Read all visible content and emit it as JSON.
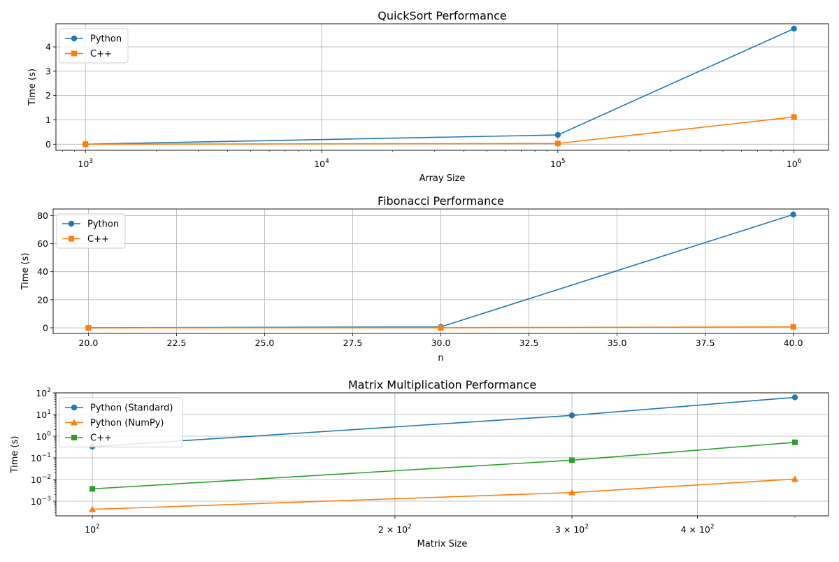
{
  "chart_data": [
    {
      "type": "line",
      "title": "QuickSort Performance",
      "xlabel": "Array Size",
      "ylabel": "Time (s)",
      "xscale": "log",
      "yscale": "linear",
      "xlim": [
        750,
        1400000
      ],
      "ylim": [
        -0.25,
        4.95
      ],
      "grid": true,
      "legend_position": "top-left",
      "x_ticks": [
        {
          "value": 1000,
          "base": "10",
          "exp": "3"
        },
        {
          "value": 10000,
          "base": "10",
          "exp": "4"
        },
        {
          "value": 100000,
          "base": "10",
          "exp": "5"
        },
        {
          "value": 1000000,
          "base": "10",
          "exp": "6"
        }
      ],
      "y_ticks": [
        {
          "value": 0,
          "label": "0"
        },
        {
          "value": 1,
          "label": "1"
        },
        {
          "value": 2,
          "label": "2"
        },
        {
          "value": 3,
          "label": "3"
        },
        {
          "value": 4,
          "label": "4"
        }
      ],
      "x": [
        1000,
        100000,
        1000000
      ],
      "series": [
        {
          "name": "Python",
          "values": [
            0.001,
            0.38,
            4.75
          ],
          "color": "#1f77b4",
          "marker": "circle"
        },
        {
          "name": "C++",
          "values": [
            0.0001,
            0.03,
            1.12
          ],
          "color": "#ff7f0e",
          "marker": "square"
        }
      ]
    },
    {
      "type": "line",
      "title": "Fibonacci Performance",
      "xlabel": "n",
      "ylabel": "Time (s)",
      "xscale": "linear",
      "yscale": "linear",
      "xlim": [
        19,
        41
      ],
      "ylim": [
        -4.0,
        84.7
      ],
      "grid": true,
      "legend_position": "top-left",
      "x_ticks": [
        {
          "value": 20,
          "label": "20.0"
        },
        {
          "value": 22.5,
          "label": "22.5"
        },
        {
          "value": 25,
          "label": "25.0"
        },
        {
          "value": 27.5,
          "label": "27.5"
        },
        {
          "value": 30,
          "label": "30.0"
        },
        {
          "value": 32.5,
          "label": "32.5"
        },
        {
          "value": 35,
          "label": "35.0"
        },
        {
          "value": 37.5,
          "label": "37.5"
        },
        {
          "value": 40,
          "label": "40.0"
        }
      ],
      "y_ticks": [
        {
          "value": 0,
          "label": "0"
        },
        {
          "value": 20,
          "label": "20"
        },
        {
          "value": 40,
          "label": "40"
        },
        {
          "value": 60,
          "label": "60"
        },
        {
          "value": 80,
          "label": "80"
        }
      ],
      "x": [
        20,
        30,
        40
      ],
      "series": [
        {
          "name": "Python",
          "values": [
            0.002,
            0.66,
            80.8
          ],
          "color": "#1f77b4",
          "marker": "circle"
        },
        {
          "name": "C++",
          "values": [
            0.0001,
            0.004,
            0.7
          ],
          "color": "#ff7f0e",
          "marker": "square"
        }
      ]
    },
    {
      "type": "line",
      "title": "Matrix Multiplication Performance",
      "xlabel": "Matrix Size",
      "ylabel": "Time (s)",
      "xscale": "log",
      "yscale": "log",
      "xlim": [
        92,
        540
      ],
      "ylim": [
        0.00021,
        100
      ],
      "grid": true,
      "legend_position": "top-left",
      "x_ticks": [
        {
          "value": 100,
          "base": "10",
          "exp": "2",
          "mantissa": ""
        },
        {
          "value": 200,
          "base": "10",
          "exp": "2",
          "mantissa": "2 × "
        },
        {
          "value": 300,
          "base": "10",
          "exp": "2",
          "mantissa": "3 × "
        },
        {
          "value": 400,
          "base": "10",
          "exp": "2",
          "mantissa": "4 × "
        }
      ],
      "y_ticks": [
        {
          "value": 0.001,
          "base": "10",
          "exp": "−3"
        },
        {
          "value": 0.01,
          "base": "10",
          "exp": "−2"
        },
        {
          "value": 0.1,
          "base": "10",
          "exp": "−1"
        },
        {
          "value": 1,
          "base": "10",
          "exp": "0"
        },
        {
          "value": 10,
          "base": "10",
          "exp": "1"
        },
        {
          "value": 100,
          "base": "10",
          "exp": "2"
        }
      ],
      "x": [
        100,
        300,
        500
      ],
      "series": [
        {
          "name": "Python (Standard)",
          "values": [
            0.33,
            9.1,
            62
          ],
          "color": "#1f77b4",
          "marker": "circle"
        },
        {
          "name": "Python (NumPy)",
          "values": [
            0.00042,
            0.0025,
            0.0105
          ],
          "color": "#ff7f0e",
          "marker": "triangle"
        },
        {
          "name": "C++",
          "values": [
            0.0037,
            0.078,
            0.52
          ],
          "color": "#2ca02c",
          "marker": "square"
        }
      ]
    }
  ]
}
